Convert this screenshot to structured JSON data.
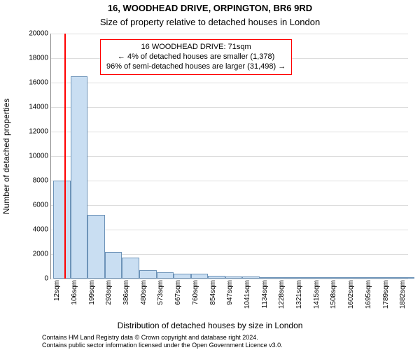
{
  "title_line1": "16, WOODHEAD DRIVE, ORPINGTON, BR6 9RD",
  "title_line2": "Size of property relative to detached houses in London",
  "title_fontsize": 13,
  "ylabel": "Number of detached properties",
  "xlabel": "Distribution of detached houses by size in London",
  "axis_label_fontsize": 12,
  "tick_fontsize": 10,
  "attribution_line1": "Contains HM Land Registry data © Crown copyright and database right 2024.",
  "attribution_line2": "Contains public sector information licensed under the Open Government Licence v3.0.",
  "attribution_fontsize": 9,
  "chart": {
    "type": "histogram",
    "background_color": "#ffffff",
    "grid_color": "#dddddd",
    "axis_color": "#888888",
    "bar_fill": "#c9def2",
    "bar_stroke": "#6d93b8",
    "marker_color": "#ff0000",
    "anno_border": "#ff0000",
    "text_color": "#000000",
    "xlim": [
      0,
      1930
    ],
    "ylim": [
      0,
      20000
    ],
    "ytick_step": 2000,
    "xticks": [
      12,
      106,
      199,
      293,
      386,
      480,
      573,
      667,
      760,
      854,
      947,
      1041,
      1134,
      1228,
      1321,
      1415,
      1508,
      1602,
      1695,
      1789,
      1882
    ],
    "xtick_unit": "sqm",
    "bin_width": 93,
    "bins_start": 12,
    "values": [
      8000,
      16500,
      5200,
      2200,
      1700,
      700,
      500,
      400,
      400,
      250,
      200,
      150,
      100,
      80,
      60,
      50,
      40,
      30,
      20,
      15,
      12
    ],
    "marker_x": 71
  },
  "annotation": {
    "line1": "16 WOODHEAD DRIVE: 71sqm",
    "line2": "← 4% of detached houses are smaller (1,378)",
    "line3": "96% of semi-detached houses are larger (31,498) →",
    "fontsize": 11
  }
}
